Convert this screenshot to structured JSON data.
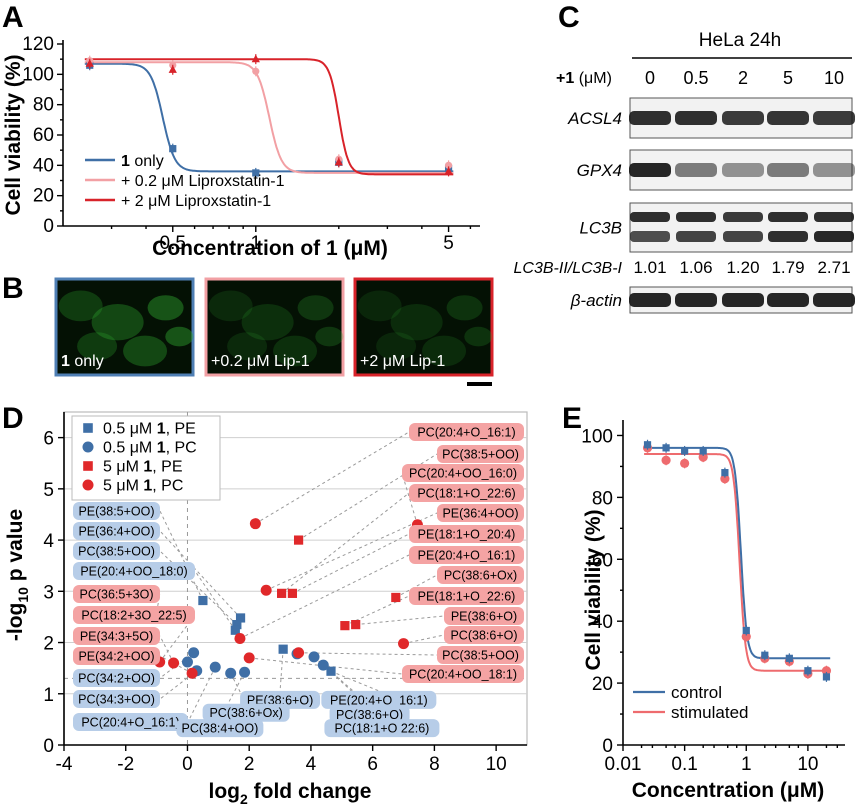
{
  "panels": {
    "a": "A",
    "b": "B",
    "c": "C",
    "d": "D",
    "e": "E"
  },
  "chart_data": [
    {
      "panel": "A",
      "type": "line",
      "xscale": "log",
      "xlabel": "Concentration of 1 (μM)",
      "ylabel": "Cell viability (%)",
      "xticks": [
        0.5,
        1,
        5
      ],
      "yticks": [
        0,
        10,
        20,
        30,
        40,
        50,
        60,
        70,
        80,
        90,
        100,
        110,
        120
      ],
      "xlim": [
        0.2,
        6.5
      ],
      "ylim": [
        0,
        120
      ],
      "series": [
        {
          "name_bold": "1",
          "name": " only",
          "color": "#3f6fa6",
          "marker": "square",
          "x": [
            0.25,
            0.5,
            1,
            2,
            5
          ],
          "y": [
            106,
            51,
            35,
            42,
            38
          ],
          "fit": {
            "top": 107,
            "bottom": 36,
            "ic50": 0.46,
            "hill": 20
          }
        },
        {
          "name": "+ 0.2 μM Liproxstatin-1",
          "color": "#f2a0a4",
          "marker": "circle",
          "x": [
            0.25,
            0.5,
            1,
            2,
            5
          ],
          "y": [
            109,
            106,
            102,
            44,
            40
          ],
          "fit": {
            "top": 108,
            "bottom": 35,
            "ic50": 1.12,
            "hill": 20
          }
        },
        {
          "name": "+ 2 μM Liproxstatin-1",
          "color": "#d8232a",
          "marker": "triangle",
          "x": [
            0.25,
            0.5,
            1,
            2,
            5
          ],
          "y": [
            107,
            103,
            110,
            42,
            36
          ],
          "fit": {
            "top": 110,
            "bottom": 34,
            "ic50": 2.0,
            "hill": 25
          }
        }
      ]
    },
    {
      "panel": "D",
      "type": "scatter",
      "xlabel_pre": "log",
      "xlabel_sub": "2",
      "xlabel_post": " fold change",
      "ylabel_pre": "-log",
      "ylabel_sub": "10",
      "ylabel_post": " p value",
      "xticks": [
        -4,
        -2,
        0,
        2,
        4,
        6,
        8,
        10
      ],
      "yticks": [
        0,
        1,
        2,
        3,
        4,
        5,
        6
      ],
      "xlim": [
        -4,
        11
      ],
      "ylim": [
        0,
        6.5
      ],
      "legend": [
        {
          "prefix": "0.5 μM ",
          "bold": "1",
          "suffix": ", PE",
          "color": "#3f6fa6",
          "marker": "square"
        },
        {
          "prefix": "0.5 μM ",
          "bold": "1",
          "suffix": ", PC",
          "color": "#3f6fa6",
          "marker": "circle"
        },
        {
          "prefix": "5 μM ",
          "bold": "1",
          "suffix": ", PE",
          "color": "#e0282a",
          "marker": "square"
        },
        {
          "prefix": "5 μM ",
          "bold": "1",
          "suffix": ", PC",
          "color": "#e0282a",
          "marker": "circle"
        }
      ],
      "points": [
        {
          "g": 0,
          "x": 0.5,
          "y": 2.82,
          "label": "PE(38:5+OO)",
          "side": "left",
          "row": 0
        },
        {
          "g": 0,
          "x": 1.72,
          "y": 2.48,
          "label": "PE(36:4+OO)",
          "side": "left",
          "row": 1
        },
        {
          "g": 0,
          "x": 1.6,
          "y": 2.35,
          "label": "PC(38:5+OO)",
          "side": "left",
          "row": 2
        },
        {
          "g": 0,
          "x": 1.55,
          "y": 2.24,
          "label": "PE(20:4+OO_18:0)",
          "side": "left",
          "row": 3
        },
        {
          "g": 0,
          "x": 3.1,
          "y": 1.87,
          "label": "PE(38:6+O)",
          "side": "bottom",
          "lx": 3.0,
          "ly": 0.88
        },
        {
          "g": 0,
          "x": 4.65,
          "y": 1.44,
          "label": "PE(20:4+O_16:1)",
          "side": "bottom",
          "lx": 6.2,
          "ly": 0.88
        },
        {
          "g": 1,
          "x": 0.2,
          "y": 1.8,
          "label": "PC(34:2+OO)",
          "side": "left",
          "row": 8
        },
        {
          "g": 1,
          "x": 0.0,
          "y": 1.62,
          "label": "",
          "side": "none"
        },
        {
          "g": 1,
          "x": 0.3,
          "y": 1.45,
          "label": "PC(34:3+OO)",
          "side": "left",
          "row": 9
        },
        {
          "g": 1,
          "x": 0.9,
          "y": 1.52,
          "label": "PC(20:4+O_16:1)",
          "side": "left",
          "row": 10
        },
        {
          "g": 1,
          "x": 1.4,
          "y": 1.4,
          "label": "PC(38:6+Ox)",
          "side": "bottom",
          "lx": 1.9,
          "ly": 0.63
        },
        {
          "g": 1,
          "x": 1.85,
          "y": 1.42,
          "label": "PC(38:4+OO)",
          "side": "bottom",
          "lx": 1.05,
          "ly": 0.33
        },
        {
          "g": 1,
          "x": 3.55,
          "y": 1.78,
          "label": "",
          "side": "none"
        },
        {
          "g": 1,
          "x": 4.1,
          "y": 1.72,
          "label": "PC(38:6+O)",
          "side": "bottom",
          "lx": 5.9,
          "ly": 0.6
        },
        {
          "g": 1,
          "x": 4.4,
          "y": 1.56,
          "label": "PC(18:1+O 22:6)",
          "side": "bottom",
          "lx": 6.3,
          "ly": 0.33
        },
        {
          "g": 2,
          "x": 3.6,
          "y": 4.0,
          "label": "PC(38:5+OO)",
          "side": "right",
          "row": 1
        },
        {
          "g": 2,
          "x": 3.05,
          "y": 2.96,
          "label": "PC(18:1+O_22:6)",
          "side": "right",
          "row": 3
        },
        {
          "g": 2,
          "x": 3.4,
          "y": 2.96,
          "label": "PE(18:1+O_20:4)",
          "side": "right",
          "row": 5
        },
        {
          "g": 2,
          "x": 6.75,
          "y": 2.88,
          "label": "PC(38:6+Ox)",
          "side": "right",
          "row": 7
        },
        {
          "g": 2,
          "x": 5.1,
          "y": 2.33,
          "label": "PE(18:1+O_22:6)",
          "side": "right",
          "row": 8
        },
        {
          "g": 2,
          "x": 5.45,
          "y": 2.35,
          "label": "PE(38:6+O)",
          "side": "right",
          "row": 9
        },
        {
          "g": 3,
          "x": 2.2,
          "y": 4.32,
          "label": "PC(20:4+O_16:1)",
          "side": "right",
          "row": 0
        },
        {
          "g": 3,
          "x": 7.45,
          "y": 4.3,
          "label": "PC(20:4+OO_16:0)",
          "side": "right",
          "row": 2
        },
        {
          "g": 3,
          "x": 2.55,
          "y": 3.02,
          "label": "PE(36:4+OO)",
          "side": "right",
          "row": 4
        },
        {
          "g": 3,
          "x": 1.7,
          "y": 2.08,
          "label": "PE(20:4+O_16:1)",
          "side": "right",
          "row": 6
        },
        {
          "g": 3,
          "x": 7.0,
          "y": 1.98,
          "label": "PC(38:6+O)",
          "side": "right",
          "row": 10
        },
        {
          "g": 3,
          "x": 3.6,
          "y": 1.8,
          "label": "PC(38:5+OO)",
          "side": "right",
          "row": 11
        },
        {
          "g": 3,
          "x": 2.0,
          "y": 1.7,
          "label": "PC(20:4+OO_18:1)",
          "side": "right",
          "row": 12
        },
        {
          "g": 3,
          "x": -1.0,
          "y": 2.6,
          "label": "PC(36:5+3O)",
          "side": "left",
          "row": 4
        },
        {
          "g": 3,
          "x": -0.9,
          "y": 1.62,
          "label": "PC(18:2+3O_22:5)",
          "side": "left",
          "row": 5
        },
        {
          "g": 3,
          "x": -0.45,
          "y": 1.6,
          "label": "PE(34:3+5O)",
          "side": "left",
          "row": 6
        },
        {
          "g": 3,
          "x": 0.15,
          "y": 1.4,
          "label": "PE(34:2+OO)",
          "side": "left",
          "row": 7
        }
      ]
    },
    {
      "panel": "E",
      "type": "line",
      "xscale": "log",
      "xlabel": "Concentration (μM)",
      "ylabel": "Cell viability (%)",
      "xticks": [
        0.01,
        0.1,
        1,
        10
      ],
      "xticklabels": [
        "0.01",
        "0.1",
        "1",
        "10"
      ],
      "yticks": [
        0,
        20,
        40,
        60,
        80,
        100
      ],
      "xlim": [
        0.01,
        40
      ],
      "ylim": [
        0,
        105
      ],
      "series": [
        {
          "name": "control",
          "color": "#3f6fa6",
          "x": [
            0.025,
            0.05,
            0.1,
            0.2,
            0.45,
            1.0,
            2.0,
            5.0,
            10.0,
            20.0
          ],
          "y": [
            97,
            96,
            95,
            95,
            88,
            37,
            29,
            28,
            24,
            22
          ],
          "fit": {
            "top": 96,
            "bottom": 28,
            "ic50": 0.82,
            "hill": 9
          }
        },
        {
          "name": "stimulated",
          "color": "#ee6b6e",
          "x": [
            0.025,
            0.05,
            0.1,
            0.2,
            0.45,
            1.0,
            2.0,
            5.0,
            10.0,
            20.0
          ],
          "y": [
            96,
            92,
            91,
            93,
            86,
            35,
            28,
            27,
            23,
            24
          ],
          "fit": {
            "top": 94,
            "bottom": 24,
            "ic50": 0.78,
            "hill": 9
          }
        }
      ]
    }
  ],
  "panel_b": {
    "images": [
      {
        "bold": "1",
        "label": " only",
        "border": "#4f7fb4"
      },
      {
        "bold": "",
        "label": "+0.2 μM Lip-1",
        "border": "#f2a0a4"
      },
      {
        "bold": "",
        "label": "+2 μM Lip-1",
        "border": "#d8232a"
      }
    ]
  },
  "panel_c": {
    "header": "HeLa 24h",
    "treatment_bold": "+1",
    "treatment_unit": " (μM)",
    "concentrations": [
      "0",
      "0.5",
      "2",
      "5",
      "10"
    ],
    "blots": [
      "ACSL4",
      "GPX4",
      "LC3B",
      "β-actin"
    ],
    "ratio_label": "LC3B-II/LC3B-I",
    "ratios": [
      "1.01",
      "1.06",
      "1.20",
      "1.79",
      "2.71"
    ]
  }
}
